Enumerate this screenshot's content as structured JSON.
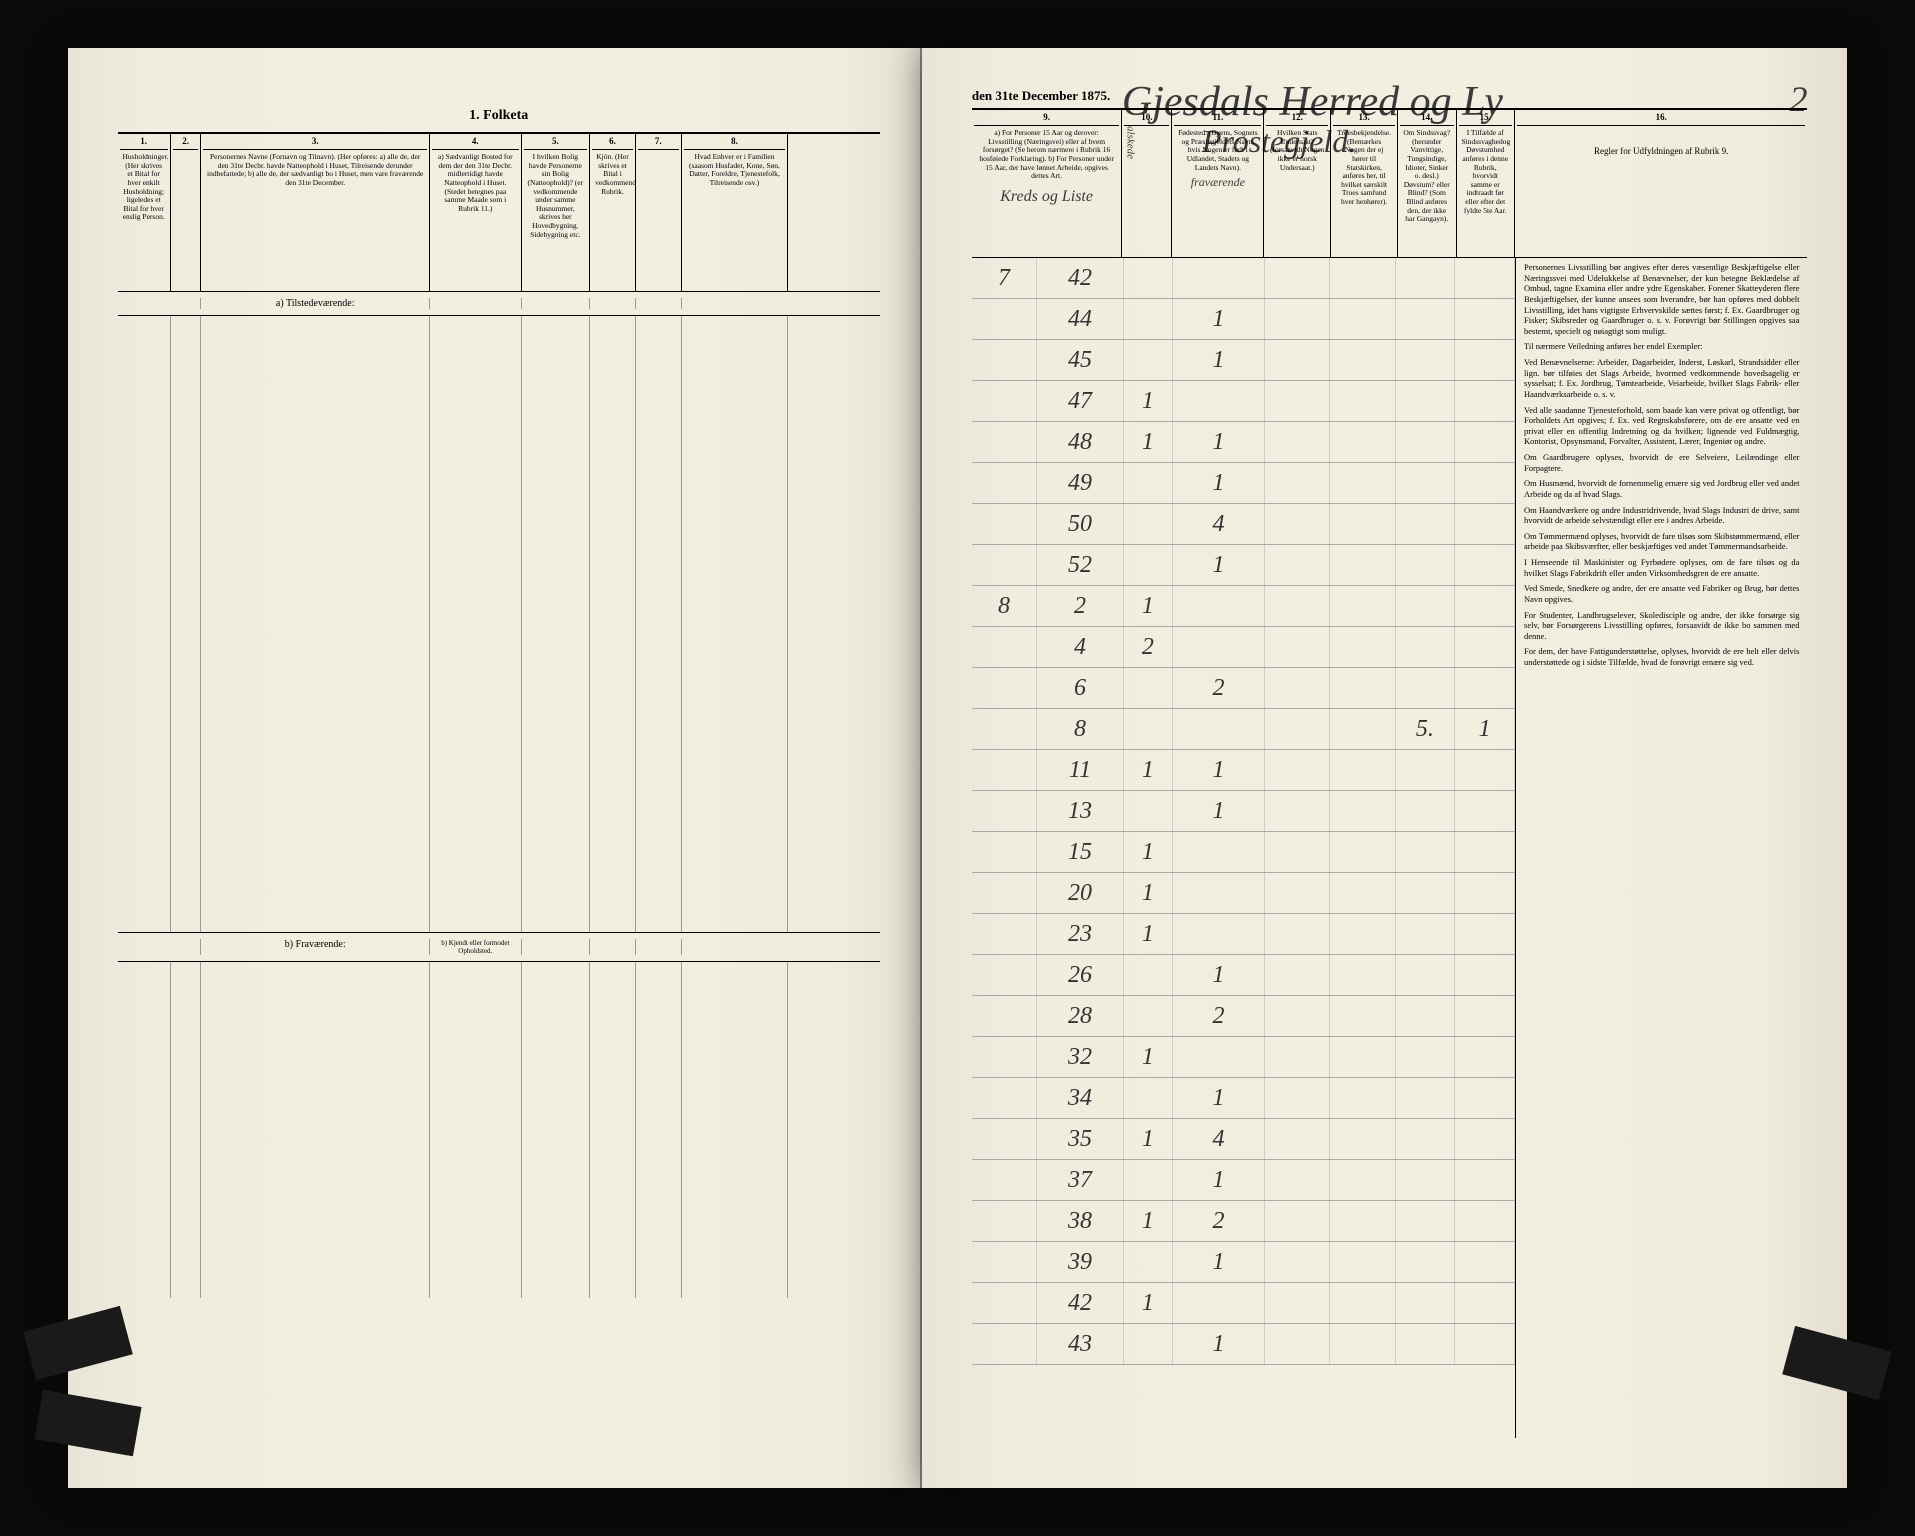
{
  "document": {
    "title": "1. Folketa",
    "date_line": "den 31te December 1875.",
    "handwritten_header": "Gjesdals Herred og Ly",
    "handwritten_sub": "Prostegjeld.",
    "page_number": "2"
  },
  "left_page": {
    "columns": [
      {
        "num": "1.",
        "width": 7,
        "text": "Husholdninger. (Her skrives et Bital for hver enkilt Husholdning; ligeledes et Bital for hver enslig Person."
      },
      {
        "num": "2.",
        "width": 4,
        "text": ""
      },
      {
        "num": "3.",
        "width": 30,
        "text": "Personernes Navne (Fornavn og Tilnavn).\n(Her opføres:\na) alle de, der den 31te Decbr. havde Natteophold i Huset, Tilreisende derunder indbefattede;\nb) alle de, der sædvanligt bo i Huset, men vare fraværende den 31te December."
      },
      {
        "num": "4.",
        "width": 12,
        "text": "a) Sædvanligt Bosted for dem der den 31te Decbr. midlertidigt havde Natteophold i Huset.\n(Stedet betegnes paa samme Maade som i Rubrik 11.)"
      },
      {
        "num": "5.",
        "width": 9,
        "text": "I hvilken Bolig havde Personerne sin Bolig (Natteophold)? (er vedkommende under samme Husnummer, skrives her Hovedbygning. Sidebygning etc."
      },
      {
        "num": "6.",
        "width": 6,
        "text": "Kjön. (Her skrives et Bital i vedkommende Rubrik."
      },
      {
        "num": "7.",
        "width": 6,
        "text": ""
      },
      {
        "num": "8.",
        "width": 14,
        "text": "Hvad Enhver er i Familien (saasom Husfader, Kone, Søn, Datter, Foreldre, Tjenestefolk, Tilreisende osv.)"
      }
    ],
    "section_a": "a) Tilstedeværende:",
    "section_b": "b) Fraværende:",
    "section_b_col4": "b) Kjendt eller formodet Opholdsted."
  },
  "right_page": {
    "columns": [
      {
        "num": "9.",
        "width": 24,
        "text": "a) For Personer 15 Aar og derover: Livsstilling (Næringsvei) eller af hvem forsørget? (Se herom nærmere i Rubrik 16 hosføiede Forklaring).\nb) For Personer under 15 Aar, der have lønnet Arbeide, opgives dettes Art."
      },
      {
        "num": "10.",
        "width": 8,
        "text": "Midag"
      },
      {
        "num": "11.",
        "width": 14,
        "text": "Fødested. (Byens, Sognets og Præstegjeldets Navn, hvis Nogen er født i Udlandet, Stadets og Landets Navn)."
      },
      {
        "num": "12.",
        "width": 10,
        "text": "Hvilken Stats Undersaat? (forsaavidt Nogen ikke er norsk Undersaat.)"
      },
      {
        "num": "13.",
        "width": 10,
        "text": "Troesbekjendelse. (Bemærkes Nogen der ej hører til Statskirken, anføres her, til hvilket særskilt Troes samfund hver henhører)."
      },
      {
        "num": "14.",
        "width": 8,
        "text": "Om Sindssvag? (herunder Vanvittige, Tungsindige, Idioter, Sinker o. desl.) Døvstum? eller Blind? (Som Blind anføres den, der ikke har Gangayn)."
      },
      {
        "num": "15.",
        "width": 8,
        "text": "I Tilfælde af Sindssvaghedog Døvstumhed anføres i denne Rubrik, hvorvidt samme er indtraadt før eller efter det fyldte 5te Aar."
      },
      {
        "num": "16.",
        "width": 18,
        "text": "Regler for Udfyldningen\naf\nRubrik 9."
      }
    ],
    "hw_col_labels": {
      "kreds": "Kreds og Liste",
      "alskede": "alskede",
      "fravaerende": "fraværende"
    },
    "data_rows": [
      {
        "kreds": "7",
        "liste": "42",
        "c1": "",
        "c2": "",
        "c3": "",
        "c4": ""
      },
      {
        "kreds": "",
        "liste": "44",
        "c1": "",
        "c2": "1",
        "c3": "",
        "c4": ""
      },
      {
        "kreds": "",
        "liste": "45",
        "c1": "",
        "c2": "1",
        "c3": "",
        "c4": ""
      },
      {
        "kreds": "",
        "liste": "47",
        "c1": "1",
        "c2": "",
        "c3": "",
        "c4": ""
      },
      {
        "kreds": "",
        "liste": "48",
        "c1": "1",
        "c2": "1",
        "c3": "",
        "c4": ""
      },
      {
        "kreds": "",
        "liste": "49",
        "c1": "",
        "c2": "1",
        "c3": "",
        "c4": ""
      },
      {
        "kreds": "",
        "liste": "50",
        "c1": "",
        "c2": "4",
        "c3": "",
        "c4": ""
      },
      {
        "kreds": "",
        "liste": "52",
        "c1": "",
        "c2": "1",
        "c3": "",
        "c4": ""
      },
      {
        "kreds": "8",
        "liste": "2",
        "c1": "1",
        "c2": "",
        "c3": "",
        "c4": ""
      },
      {
        "kreds": "",
        "liste": "4",
        "c1": "2",
        "c2": "",
        "c3": "",
        "c4": ""
      },
      {
        "kreds": "",
        "liste": "6",
        "c1": "",
        "c2": "2",
        "c3": "",
        "c4": ""
      },
      {
        "kreds": "",
        "liste": "8",
        "c1": "",
        "c2": "",
        "c3": "5.",
        "c4": "1"
      },
      {
        "kreds": "",
        "liste": "11",
        "c1": "1",
        "c2": "1",
        "c3": "",
        "c4": ""
      },
      {
        "kreds": "",
        "liste": "13",
        "c1": "",
        "c2": "1",
        "c3": "",
        "c4": ""
      },
      {
        "kreds": "",
        "liste": "15",
        "c1": "1",
        "c2": "",
        "c3": "",
        "c4": ""
      },
      {
        "kreds": "",
        "liste": "20",
        "c1": "1",
        "c2": "",
        "c3": "",
        "c4": ""
      },
      {
        "kreds": "",
        "liste": "23",
        "c1": "1",
        "c2": "",
        "c3": "",
        "c4": ""
      },
      {
        "kreds": "",
        "liste": "26",
        "c1": "",
        "c2": "1",
        "c3": "",
        "c4": ""
      },
      {
        "kreds": "",
        "liste": "28",
        "c1": "",
        "c2": "2",
        "c3": "",
        "c4": ""
      },
      {
        "kreds": "",
        "liste": "32",
        "c1": "1",
        "c2": "",
        "c3": "",
        "c4": ""
      },
      {
        "kreds": "",
        "liste": "34",
        "c1": "",
        "c2": "1",
        "c3": "",
        "c4": ""
      },
      {
        "kreds": "",
        "liste": "35",
        "c1": "1",
        "c2": "4",
        "c3": "",
        "c4": ""
      },
      {
        "kreds": "",
        "liste": "37",
        "c1": "",
        "c2": "1",
        "c3": "",
        "c4": ""
      },
      {
        "kreds": "",
        "liste": "38",
        "c1": "1",
        "c2": "2",
        "c3": "",
        "c4": ""
      },
      {
        "kreds": "",
        "liste": "39",
        "c1": "",
        "c2": "1",
        "c3": "",
        "c4": ""
      },
      {
        "kreds": "",
        "liste": "42",
        "c1": "1",
        "c2": "",
        "c3": "",
        "c4": ""
      },
      {
        "kreds": "",
        "liste": "43",
        "c1": "",
        "c2": "1",
        "c3": "",
        "c4": ""
      }
    ],
    "rules_paragraphs": [
      "Personernes Livsstilling bør angives efter deres væsentlige Beskjæftigelse eller Næringssvei med Udelukkelse af Benævnelser, der kun betegne Beklædelse af Ombud, tagne Examina eller andre ydre Egenskaber. Forener Skatteyderen flere Beskjæftigelser, der kunne ansees som hverandre, bør han opføres med dobbelt Livsstilling, idet hans vigtigste Erhvervskilde sættes først; f. Ex. Gaardbruger og Fisker; Skibsreder og Gaardbruger o. s. v. Forøvrigt bør Stillingen opgives saa bestemt, specielt og nøiagtigt som muligt.",
      "Til nærmere Veiledning anføres her endel Exempler:",
      "Ved Benævnelserne: Arbeider, Dagarbeider, Inderst, Løskarl, Strandsidder eller lign. bør tilføies det Slags Arbeide, hvormed vedkommende hovedsagelig er sysselsat; f. Ex. Jordbrug, Tømtearbeide, Veiarbeide, hvilket Slags Fabrik- eller Haandværksarbeide o. s. v.",
      "Ved alle saadanne Tjenesteforhold, som baade kan være privat og offentligt, bør Forholdets Art opgives; f. Ex. ved Regnskabsførere, om de ere ansatte ved en privat eller en offentlig Indretning og da hvilken; lignende ved Fuldmægtig, Kontorist, Opsynsmand, Forvalter, Assistent, Lærer, Ingeniør og andre.",
      "Om Gaardbrugere oplyses, hvorvidt de ere Selveiere, Leilændinge eller Forpagtere.",
      "Om Husmænd, hvorvidt de fornemmelig ernære sig ved Jordbrug eller ved andet Arbeide og da af hvad Slags.",
      "Om Haandværkere og andre Industridrivende, hvad Slags Industri de drive, samt hvorvidt de arbeide selvstændigt eller ere i andres Arbeide.",
      "Om Tømmermænd oplyses, hvorvidt de fare tilsøs som Skibstømmermænd, eller arbeide paa Skibsværfter, eller beskjæftiges ved andet Tømmermandsarbeide.",
      "I Henseende til Maskinister og Fyrbødere oplyses, om de fare tilsøs og da hvilket Slags Fabrikdrift eller anden Virksomhedsgren de ere ansatte.",
      "Ved Smede, Snedkere og andre, der ere ansatte ved Fabriker og Brug, bør dettes Navn opgives.",
      "For Studenter, Landbrugselever, Skoledisciple og andre, der ikke forsørge sig selv, bør Forsørgerens Livsstilling opføres, forsaavidt de ikke bo sammen med denne.",
      "For dem, der have Fattigunderstøttelse, oplyses, hvorvidt de ere helt eller delvis understøttede og i sidste Tilfælde, hvad de forøvrigt ernære sig ved."
    ]
  },
  "styling": {
    "paper_bg": "#f0ecde",
    "border_color": "#000000",
    "handwriting_color": "#3a3a3a",
    "print_text_color": "#1a1a1a"
  }
}
